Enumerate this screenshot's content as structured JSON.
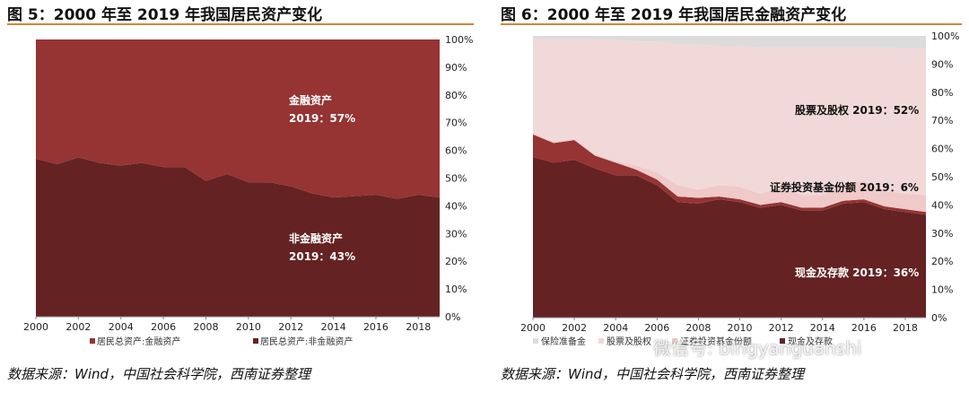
{
  "left": {
    "title": "图 5：2000 年至 2019 年我国居民资产变化",
    "source": "数据来源：Wind，中国社会科学院，西南证券整理",
    "chart_data": {
      "type": "area",
      "stacked": true,
      "x": [
        2000,
        2001,
        2002,
        2003,
        2004,
        2005,
        2006,
        2007,
        2008,
        2009,
        2010,
        2011,
        2012,
        2013,
        2014,
        2015,
        2016,
        2017,
        2018,
        2019
      ],
      "xticks": [
        "2000",
        "2002",
        "2004",
        "2006",
        "2008",
        "2010",
        "2012",
        "2014",
        "2016",
        "2018"
      ],
      "yticks": [
        "0%",
        "10%",
        "20%",
        "30%",
        "40%",
        "50%",
        "60%",
        "70%",
        "80%",
        "90%",
        "100%"
      ],
      "ylim": [
        0,
        100
      ],
      "series": [
        {
          "name": "居民总资产:非金融资产",
          "color": "#652222",
          "values": [
            57,
            55,
            57.5,
            55.5,
            54.5,
            55.5,
            54,
            54,
            49,
            51.5,
            48.5,
            48.5,
            47,
            44.5,
            43,
            43.5,
            44,
            42.5,
            44,
            43
          ]
        },
        {
          "name": "居民总资产:金融资产",
          "color": "#963333",
          "values": [
            43,
            45,
            42.5,
            44.5,
            45.5,
            44.5,
            46,
            46,
            51,
            48.5,
            51.5,
            51.5,
            53,
            55.5,
            57,
            56.5,
            56,
            57.5,
            56,
            57
          ]
        }
      ],
      "legend": [
        "居民总资产:金融资产",
        "居民总资产:非金融资产"
      ],
      "annotations": [
        {
          "line1": "金融资产",
          "line2": "2019：57%"
        },
        {
          "line1": "非金融资产",
          "line2": "2019：43%"
        }
      ]
    }
  },
  "right": {
    "title": "图 6：2000 年至 2019 年我国居民金融资产变化",
    "source": "数据来源：Wind，中国社会科学院，西南证券整理",
    "watermark": "微信号: bingyanguanshi",
    "chart_data": {
      "type": "area",
      "stacked": true,
      "x": [
        2000,
        2001,
        2002,
        2003,
        2004,
        2005,
        2006,
        2007,
        2008,
        2009,
        2010,
        2011,
        2012,
        2013,
        2014,
        2015,
        2016,
        2017,
        2018,
        2019
      ],
      "xticks": [
        "2000",
        "2002",
        "2004",
        "2006",
        "2008",
        "2010",
        "2012",
        "2014",
        "2016",
        "2018"
      ],
      "yticks": [
        "0%",
        "10%",
        "20%",
        "30%",
        "40%",
        "50%",
        "60%",
        "70%",
        "80%",
        "90%",
        "100%"
      ],
      "ylim": [
        0,
        100
      ],
      "series": [
        {
          "name": "现金及存款",
          "color": "#652222",
          "values": [
            57,
            55,
            56,
            53,
            50.5,
            50.5,
            47,
            41,
            40.5,
            42,
            41,
            39,
            40,
            38,
            38,
            40.5,
            41,
            38.5,
            37.5,
            36.5
          ]
        },
        {
          "name": "",
          "color": "#963333",
          "values": [
            8,
            7,
            7,
            4.5,
            4.5,
            2,
            2,
            2,
            2,
            1,
            1,
            1,
            1,
            1,
            1,
            1,
            1,
            1,
            1,
            1
          ]
        },
        {
          "name": "证券投资基金份额",
          "color": "#f0c9c9",
          "values": [
            0.5,
            0.5,
            0.5,
            0.5,
            0.5,
            1.5,
            2.5,
            4,
            3,
            4,
            4.5,
            4,
            5,
            4.5,
            4.5,
            6,
            6.5,
            5.5,
            5.5,
            6
          ]
        },
        {
          "name": "股票及股权",
          "color": "#f1d9d9",
          "values": [
            33.5,
            36.5,
            35.5,
            41,
            43,
            44,
            46.5,
            50,
            51.5,
            49.5,
            50,
            52,
            50,
            52.5,
            52.5,
            48.5,
            47.5,
            51,
            51.5,
            52
          ]
        },
        {
          "name": "保险准备金",
          "color": "#dcdcdc",
          "values": [
            1,
            1,
            1,
            1,
            1.5,
            2,
            2,
            3,
            3,
            3.5,
            3.5,
            4,
            4,
            4,
            4,
            4,
            4,
            4,
            4.5,
            4.5
          ]
        }
      ],
      "legend": [
        "保险准备金",
        "股票及股权",
        "证券投资基金份额",
        "现金及存款"
      ],
      "annotations": [
        {
          "text": "股票及股权 2019：52%"
        },
        {
          "text": "证券投资基金份额 2019：6%"
        },
        {
          "text": "现金及存款 2019：36%"
        }
      ]
    }
  }
}
